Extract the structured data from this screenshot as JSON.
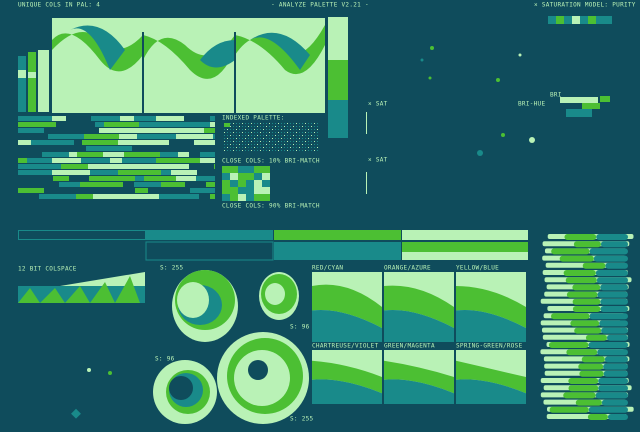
{
  "header": {
    "unique_cols": "UNIQUE COLS IN PAL: 4",
    "title": "- ANALYZE PALETTE V2.21 -",
    "saturation_model": "× SATURATION MODEL: PURITY"
  },
  "scatter_labels": {
    "sat_top": "× SAT",
    "sat_bottom": "× SAT",
    "bri_hue": "BRI-HUE",
    "bri": "BRI"
  },
  "palette": {
    "indexed": "INDEXED PALETTE:",
    "close_10": "CLOSE COLS: 10% BRI-MATCH",
    "close_90": "CLOSE COLS: 90% BRI-MATCH"
  },
  "colspace": "12 BIT COLSPACE",
  "saturation_labels": [
    "S: 255",
    "S: 96",
    "S: 96",
    "S: 255"
  ],
  "gradients": [
    "RED/CYAN",
    "ORANGE/AZURE",
    "YELLOW/BLUE",
    "CHARTREUSE/VIOLET",
    "GREEN/MAGENTA",
    "SPRING-GREEN/ROSE"
  ]
}
